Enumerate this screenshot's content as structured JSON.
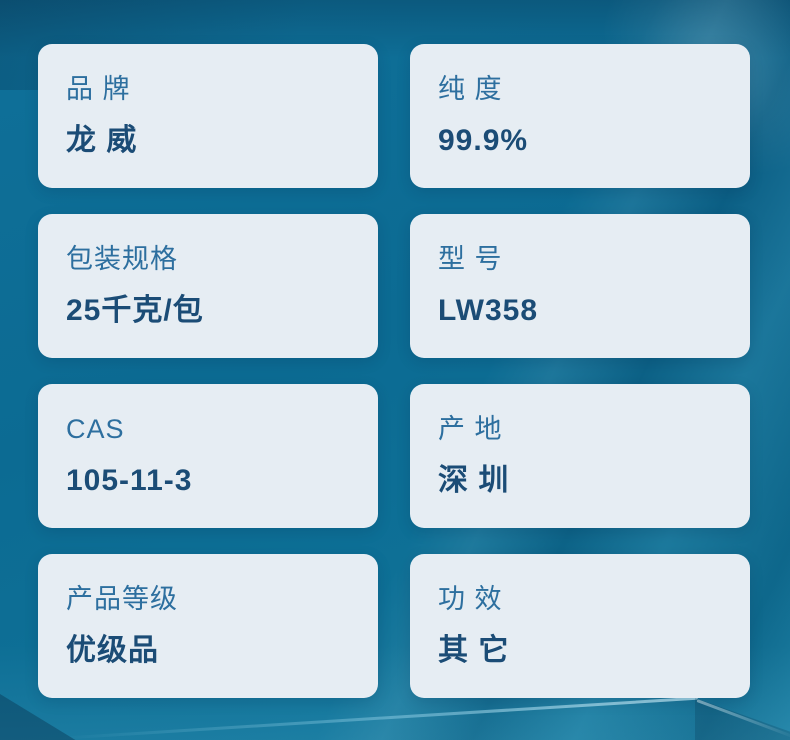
{
  "theme": {
    "background_base": "#0d6d95",
    "card_background": "#e6edf3",
    "label_color": "#2d6f9f",
    "value_color": "#1b4c76"
  },
  "specs": [
    {
      "id": "brand",
      "label": "品 牌",
      "value": "龙 威"
    },
    {
      "id": "purity",
      "label": "纯 度",
      "value": "99.9%"
    },
    {
      "id": "packaging",
      "label": "包装规格",
      "value": "25千克/包"
    },
    {
      "id": "model",
      "label": "型 号",
      "value": "LW358"
    },
    {
      "id": "cas",
      "label": "CAS",
      "value": "105-11-3"
    },
    {
      "id": "origin",
      "label": "产 地",
      "value": "深 圳"
    },
    {
      "id": "grade",
      "label": "产品等级",
      "value": "优级品"
    },
    {
      "id": "function",
      "label": "功 效",
      "value": "其 它"
    }
  ]
}
